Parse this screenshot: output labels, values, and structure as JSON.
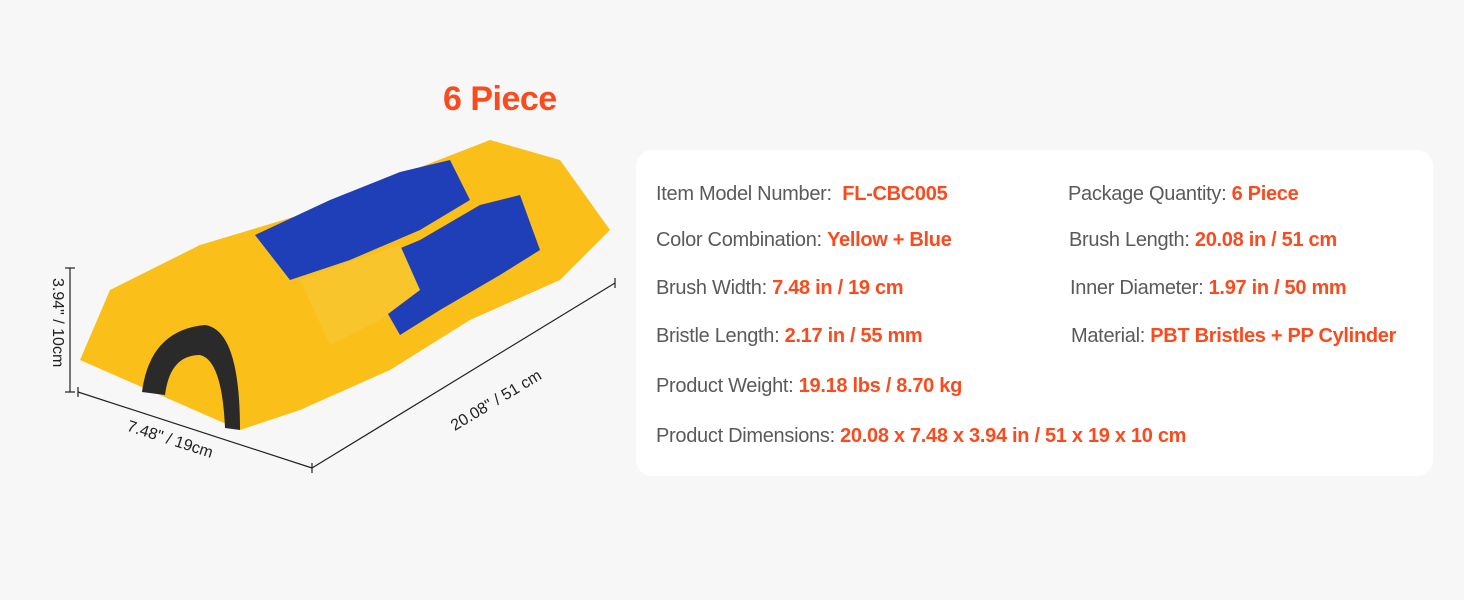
{
  "title": "6 Piece",
  "dimensions": {
    "height": "3.94\" / 10cm",
    "width": "7.48\" / 19cm",
    "length": "20.08\" / 51 cm"
  },
  "specs": [
    {
      "label": "Item Model Number:",
      "value": "FL-CBC005"
    },
    {
      "label": "Package Quantity:",
      "value": "6 Piece"
    },
    {
      "label": "Color Combination:",
      "value": "Yellow + Blue"
    },
    {
      "label": "Brush Length:",
      "value": "20.08 in / 51 cm"
    },
    {
      "label": "Brush Width:",
      "value": "7.48 in / 19 cm"
    },
    {
      "label": "Inner Diameter:",
      "value": "1.97 in / 50 mm"
    },
    {
      "label": "Bristle Length:",
      "value": "2.17 in / 55 mm"
    },
    {
      "label": "Material:",
      "value": "PBT Bristles + PP Cylinder"
    },
    {
      "label": "Product Weight:",
      "value": "19.18 lbs / 8.70 kg"
    },
    {
      "label": "Product Dimensions:",
      "value": "20.08 x 7.48 x 3.94 in / 51 x 19 x 10 cm"
    }
  ],
  "colors": {
    "accent": "#fb4b1e",
    "yellow": "#fbbf1a",
    "blue": "#1f3fb8",
    "background": "#f7f7f7"
  }
}
